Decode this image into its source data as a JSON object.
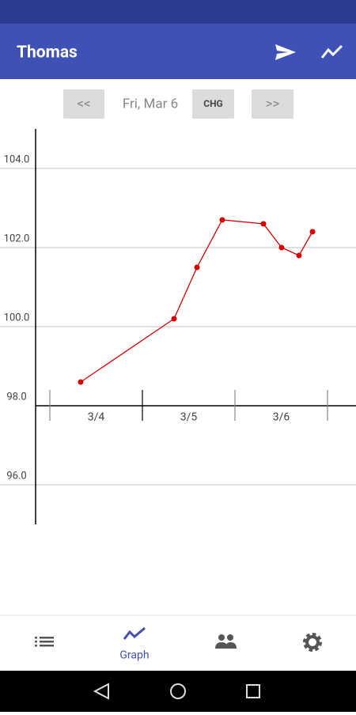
{
  "app_bar": {
    "title": "Thomas"
  },
  "date_nav": {
    "prev": "<<",
    "date": "Fri, Mar 6",
    "change": "CHG",
    "next": ">>"
  },
  "chart_data": {
    "type": "line",
    "x": [
      0.333,
      1.342,
      1.59,
      1.863,
      2.308,
      2.504,
      2.692,
      2.838
    ],
    "values": [
      98.6,
      100.2,
      101.5,
      102.7,
      102.6,
      102.0,
      101.8,
      102.4
    ],
    "color": "#d50000",
    "categories": [
      "3/4",
      "3/5",
      "3/6"
    ],
    "xlim": [
      -0.154,
      3.308
    ],
    "xticks": [
      0,
      1,
      2,
      3
    ],
    "ylim": [
      95,
      105
    ],
    "yticks": [
      {
        "value": 96,
        "label": "96.0"
      },
      {
        "value": 98,
        "label": "98.0"
      },
      {
        "value": 100,
        "label": "100.0"
      },
      {
        "value": 102,
        "label": "102.0"
      },
      {
        "value": 104,
        "label": "104.0"
      }
    ],
    "xaxis_crosses": 98,
    "grid": true
  },
  "bottom_nav": {
    "graph": "Graph"
  }
}
